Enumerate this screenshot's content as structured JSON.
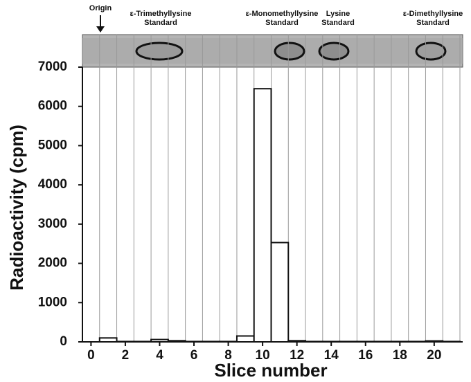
{
  "chart_data": {
    "type": "histogram",
    "x_label": "Slice number",
    "y_label": "Radioactivity (cpm)",
    "strip_labels": [
      [
        "Origin"
      ],
      [
        "ε-Trimethyllysine",
        "Standard"
      ],
      [
        "ε-Monomethyllysine",
        "Standard"
      ],
      [
        "Lysine",
        "Standard"
      ],
      [
        "ε-Dimethyllysine",
        "Standard"
      ]
    ],
    "bins": [
      0.5,
      1.5,
      2.5,
      3.5,
      4.5,
      5.5,
      6.5,
      7.5,
      8.5,
      9.5,
      10.5,
      11.5,
      12.5,
      13.5,
      14.5,
      15.5,
      16.5,
      17.5,
      18.5,
      19.5,
      20.5,
      21.5
    ],
    "counts": [
      100,
      10,
      10,
      60,
      30,
      10,
      10,
      10,
      150,
      6450,
      2530,
      30,
      10,
      10,
      10,
      10,
      10,
      10,
      10,
      25,
      10
    ],
    "color": "#ffffff",
    "xlim": [
      -0.5,
      21.5
    ],
    "xticks": [
      0,
      2,
      4,
      6,
      8,
      10,
      12,
      14,
      16,
      18,
      20
    ],
    "ylim": [
      0,
      7000
    ],
    "yticks": [
      0,
      1000,
      2000,
      3000,
      4000,
      5000,
      6000,
      7000
    ],
    "grid": true
  }
}
